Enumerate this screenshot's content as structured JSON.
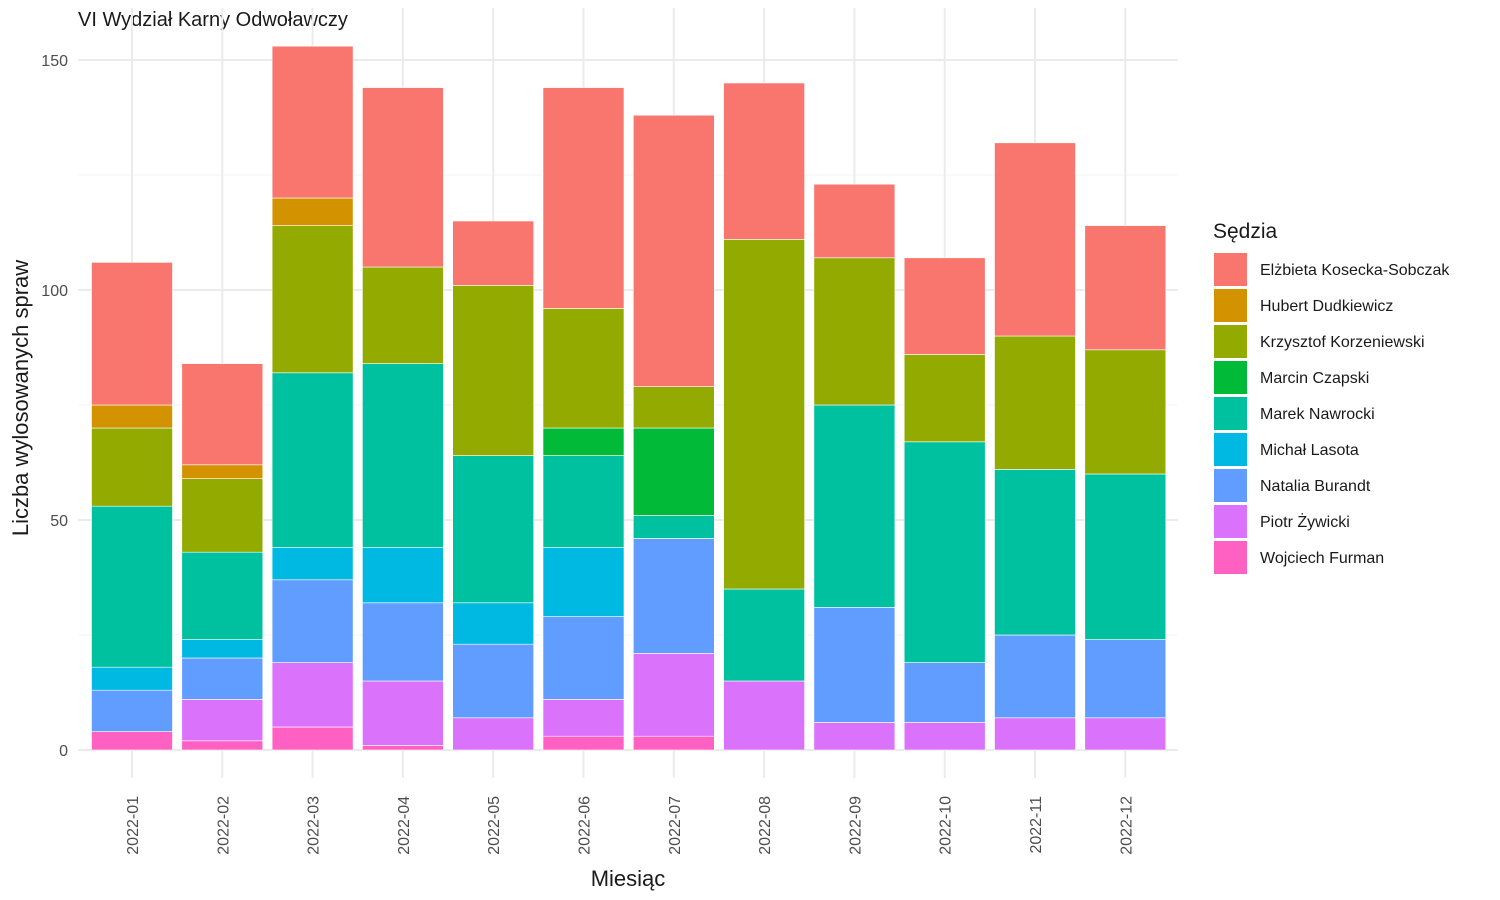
{
  "chart_data": {
    "type": "bar",
    "stacked": true,
    "title": "VI Wydział Karny Odwoławczy",
    "xlabel": "Miesiąc",
    "ylabel": "Liczba wylosowanych spraw",
    "ylim": [
      0,
      155
    ],
    "yticks": [
      0,
      50,
      100,
      150
    ],
    "grid": true,
    "legend_title": "Sędzia",
    "legend_position": "right",
    "categories": [
      "2022-01",
      "2022-02",
      "2022-03",
      "2022-04",
      "2022-05",
      "2022-06",
      "2022-07",
      "2022-08",
      "2022-09",
      "2022-10",
      "2022-11",
      "2022-12"
    ],
    "series": [
      {
        "name": "Elżbieta Kosecka-Sobczak",
        "color": "#F8766D",
        "values": [
          31,
          22,
          33,
          39,
          14,
          48,
          59,
          34,
          16,
          21,
          42,
          27
        ]
      },
      {
        "name": "Hubert Dudkiewicz",
        "color": "#D39200",
        "values": [
          5,
          3,
          6,
          0,
          0,
          0,
          0,
          0,
          0,
          0,
          0,
          0
        ]
      },
      {
        "name": "Krzysztof Korzeniewski",
        "color": "#93AA00",
        "values": [
          17,
          16,
          32,
          21,
          37,
          26,
          9,
          76,
          32,
          19,
          29,
          27
        ]
      },
      {
        "name": "Marcin Czapski",
        "color": "#00BA38",
        "values": [
          0,
          0,
          0,
          0,
          0,
          6,
          19,
          0,
          0,
          0,
          0,
          0
        ]
      },
      {
        "name": "Marek Nawrocki",
        "color": "#00C19F",
        "values": [
          35,
          19,
          38,
          40,
          32,
          20,
          5,
          20,
          44,
          48,
          36,
          36
        ]
      },
      {
        "name": "Michał Lasota",
        "color": "#00B9E3",
        "values": [
          5,
          4,
          7,
          12,
          9,
          15,
          0,
          0,
          0,
          0,
          0,
          0
        ]
      },
      {
        "name": "Natalia Burandt",
        "color": "#619CFF",
        "values": [
          9,
          9,
          18,
          17,
          16,
          18,
          25,
          0,
          25,
          13,
          18,
          17
        ]
      },
      {
        "name": "Piotr Żywicki",
        "color": "#DB72FB",
        "values": [
          0,
          9,
          14,
          14,
          7,
          8,
          18,
          15,
          6,
          6,
          7,
          7
        ]
      },
      {
        "name": "Wojciech Furman",
        "color": "#FF61C3",
        "values": [
          4,
          2,
          5,
          1,
          0,
          3,
          3,
          0,
          0,
          0,
          0,
          0
        ]
      }
    ]
  }
}
